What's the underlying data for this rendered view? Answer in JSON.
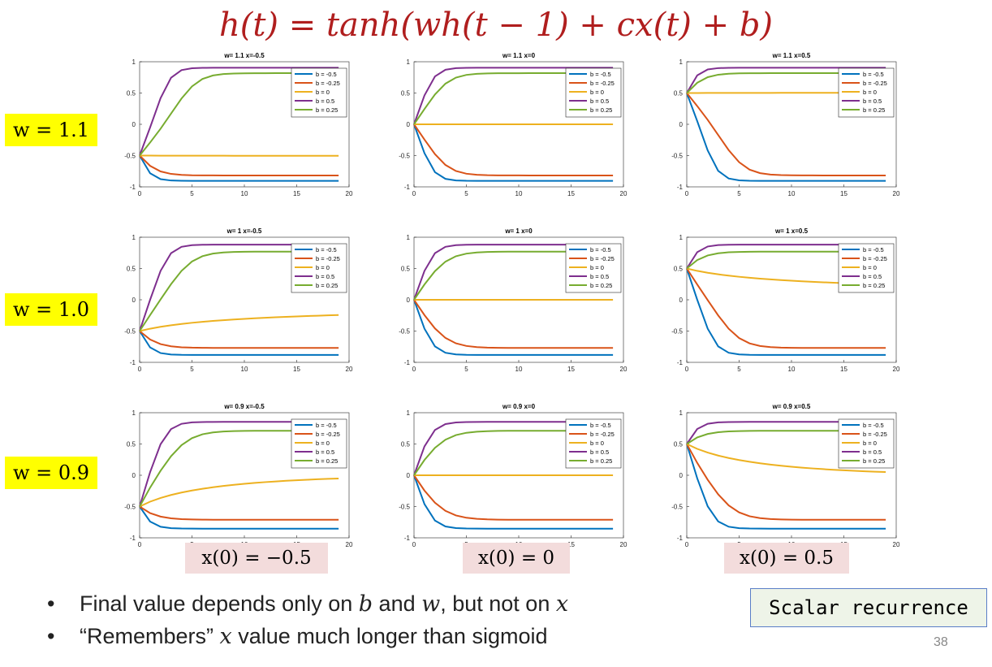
{
  "formula": "h(t) = tanh(wh(t − 1) + cx(t) + b)",
  "row_labels": [
    "w = 1.1",
    "w = 1.0",
    "w = 0.9"
  ],
  "col_labels": [
    "x(0) = −0.5",
    "x(0) = 0",
    "x(0) = 0.5"
  ],
  "bullets": [
    {
      "parts": [
        "Final value depends only on ",
        "b",
        " and ",
        "w",
        ", but not on ",
        "x"
      ]
    },
    {
      "parts": [
        "“Remembers” ",
        "x",
        " value much longer than sigmoid"
      ]
    }
  ],
  "note": "Scalar recurrence",
  "page_number": "38",
  "colors": {
    "b=-0.5": "#0072bd",
    "b=-0.25": "#d95319",
    "b=0": "#edb120",
    "b=0.5": "#7e2f8e",
    "b=0.25": "#77ac30",
    "formula": "#b01e1e",
    "row_label_bg": "#ffff00",
    "col_label_bg": "#f3dcdc"
  },
  "chart_data": {
    "type": "line",
    "description_rule": "h(t) = tanh(w*h(t-1) + b), h(0) = x(0), t = 0..19",
    "xlim": [
      0,
      20
    ],
    "ylim": [
      -1,
      1
    ],
    "xticks": [
      0,
      5,
      10,
      15,
      20
    ],
    "yticks": [
      1,
      0.5,
      0,
      -0.5,
      -1
    ],
    "ytick_labels": [
      "1",
      "0.5",
      "0",
      "-0.5",
      "-1"
    ],
    "legend_placement": "top-right",
    "legend": [
      "b = -0.5",
      "b = -0.25",
      "b = 0",
      "b = 0.5",
      "b = 0.25"
    ],
    "b_values": [
      -0.5,
      -0.25,
      0,
      0.5,
      0.25
    ],
    "steps": 20,
    "panels": [
      {
        "title": "w= 1.1 x=-0.5",
        "w": 1.1,
        "x0": -0.5
      },
      {
        "title": "w= 1.1 x=0",
        "w": 1.1,
        "x0": 0
      },
      {
        "title": "w= 1.1 x=0.5",
        "w": 1.1,
        "x0": 0.5
      },
      {
        "title": "w= 1 x=-0.5",
        "w": 1.0,
        "x0": -0.5
      },
      {
        "title": "w= 1 x=0",
        "w": 1.0,
        "x0": 0
      },
      {
        "title": "w= 1 x=0.5",
        "w": 1.0,
        "x0": 0.5
      },
      {
        "title": "w= 0.9 x=-0.5",
        "w": 0.9,
        "x0": -0.5
      },
      {
        "title": "w= 0.9 x=0",
        "w": 0.9,
        "x0": 0
      },
      {
        "title": "w= 0.9 x=0.5",
        "w": 0.9,
        "x0": 0.5
      }
    ]
  }
}
